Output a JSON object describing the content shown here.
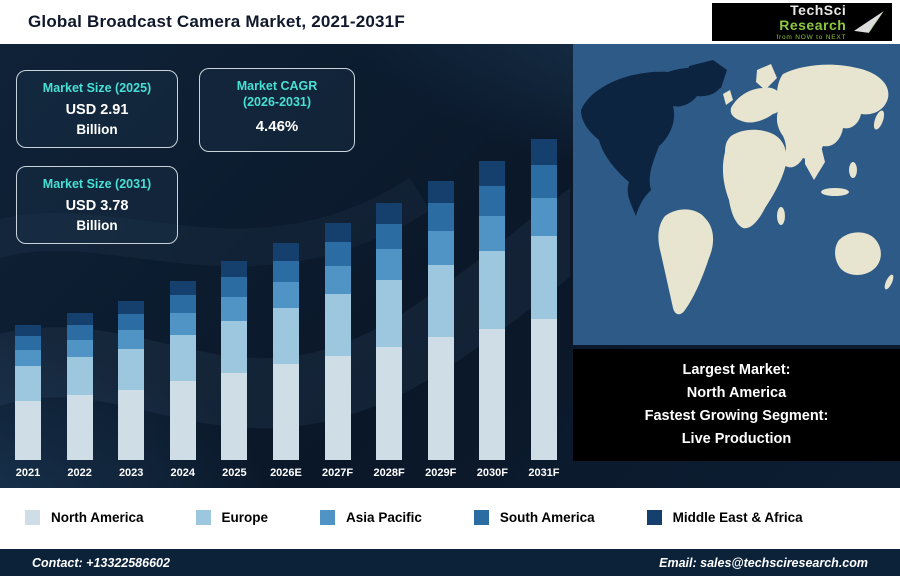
{
  "header": {
    "title": "Global Broadcast Camera Market, 2021-2031F",
    "logo": {
      "brand_primary": "TechSci",
      "brand_secondary": " Research",
      "tagline": "from NOW to NEXT",
      "accent_color": "#8dc63f"
    }
  },
  "cards": {
    "size_2025": {
      "title": "Market Size (2025)",
      "value": "USD 2.91",
      "unit": "Billion"
    },
    "cagr": {
      "title_line1": "Market CAGR",
      "title_line2": "(2026-2031)",
      "value": "4.46%"
    },
    "size_2031": {
      "title": "Market Size (2031)",
      "value": "USD 3.78",
      "unit": "Billion"
    }
  },
  "map": {
    "highlight_region": "North America",
    "colors": {
      "ocean": "#2d5a86",
      "land": "#e7e4cf",
      "highlight": "#0d2440"
    }
  },
  "map_note": {
    "line1_label": "Largest Market:",
    "line1_value": "North America",
    "line2_label": "Fastest Growing Segment:",
    "line2_value": "Live Production"
  },
  "chart_data": {
    "type": "bar",
    "stacked": true,
    "title": "Global Broadcast Camera Market, 2021-2031F",
    "unit": "USD Billion",
    "categories": [
      "2021",
      "2022",
      "2023",
      "2024",
      "2025",
      "2026E",
      "2027F",
      "2028F",
      "2029F",
      "2030F",
      "2031F"
    ],
    "series": [
      {
        "name": "North America",
        "color": "#cfdde6",
        "values": [
          1.08,
          1.12,
          1.16,
          1.22,
          1.28,
          1.34,
          1.4,
          1.46,
          1.53,
          1.59,
          1.66
        ]
      },
      {
        "name": "Europe",
        "color": "#9dc6df",
        "values": [
          0.64,
          0.66,
          0.68,
          0.72,
          0.76,
          0.79,
          0.83,
          0.86,
          0.9,
          0.94,
          0.98
        ]
      },
      {
        "name": "Asia Pacific",
        "color": "#4f94c4",
        "values": [
          0.29,
          0.3,
          0.32,
          0.33,
          0.35,
          0.36,
          0.38,
          0.4,
          0.42,
          0.43,
          0.45
        ]
      },
      {
        "name": "South America",
        "color": "#2b6ca3",
        "values": [
          0.25,
          0.25,
          0.26,
          0.28,
          0.29,
          0.3,
          0.32,
          0.33,
          0.35,
          0.36,
          0.38
        ]
      },
      {
        "name": "Middle East & Africa",
        "color": "#15406e",
        "values": [
          0.2,
          0.21,
          0.21,
          0.22,
          0.23,
          0.25,
          0.25,
          0.27,
          0.28,
          0.3,
          0.31
        ]
      }
    ],
    "totals_note": "Market Size 2025 = USD 2.91 Billion; Market Size 2031 = USD 3.78 Billion; CAGR (2026-2031) = 4.46%",
    "legend_position": "bottom",
    "grid": false,
    "y_axis_visible": false
  },
  "footer": {
    "contact": "Contact: +13322586602",
    "email": "Email: sales@techsciresearch.com"
  }
}
